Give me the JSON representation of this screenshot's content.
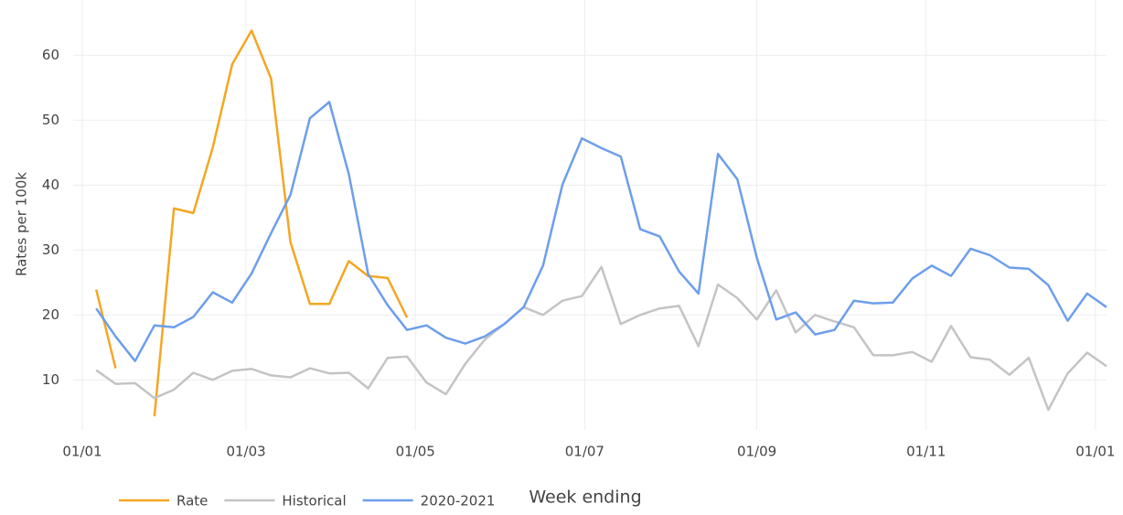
{
  "chart_data": {
    "type": "line",
    "x_label": "Week ending",
    "y_label": "Rates per 100k",
    "x": [
      5,
      12,
      19,
      26,
      33,
      40,
      47,
      54,
      61,
      68,
      75,
      82,
      89,
      96,
      103,
      110,
      117,
      124,
      131,
      138,
      145,
      152,
      159,
      166,
      173,
      180,
      187,
      194,
      201,
      208,
      215,
      222,
      229,
      236,
      243,
      250,
      257,
      264,
      271,
      278,
      285,
      292,
      299,
      306,
      313,
      320,
      327,
      334,
      341,
      348,
      355,
      362,
      369
    ],
    "xlim": [
      0,
      369
    ],
    "xticks": [
      {
        "value": 0,
        "label": "01/01"
      },
      {
        "value": 59,
        "label": "01/03"
      },
      {
        "value": 120,
        "label": "01/05"
      },
      {
        "value": 181,
        "label": "01/07"
      },
      {
        "value": 243,
        "label": "01/09"
      },
      {
        "value": 304,
        "label": "01/11"
      },
      {
        "value": 365,
        "label": "01/01"
      }
    ],
    "ylim": [
      2.3,
      68.5
    ],
    "yticks": [
      10,
      20,
      30,
      40,
      50,
      60
    ],
    "grid": true,
    "legend": "bottom-left",
    "series": [
      {
        "name": "Rate",
        "color": "#f5a623",
        "values": [
          23.9,
          11.8,
          null,
          4.4,
          36.4,
          35.7,
          45.8,
          58.6,
          63.8,
          56.4,
          31.2,
          21.7,
          21.7,
          28.3,
          26.0,
          25.7,
          19.6,
          null,
          null,
          null,
          null,
          null,
          null,
          null,
          null,
          null,
          null,
          null,
          null,
          null,
          null,
          null,
          null,
          null,
          null,
          null,
          null,
          null,
          null,
          null,
          null,
          null,
          null,
          null,
          null,
          null,
          null,
          null,
          null,
          null,
          null,
          null,
          null
        ]
      },
      {
        "name": "Historical",
        "color": "#c4c4c4",
        "values": [
          11.5,
          9.4,
          9.5,
          7.2,
          8.5,
          11.1,
          10.0,
          11.4,
          11.7,
          10.7,
          10.4,
          11.8,
          11.0,
          11.1,
          8.7,
          13.4,
          13.6,
          9.6,
          7.8,
          12.5,
          16.2,
          18.6,
          21.2,
          20.0,
          22.2,
          22.9,
          27.4,
          18.6,
          20.0,
          21.0,
          21.4,
          15.2,
          24.7,
          22.6,
          19.3,
          23.8,
          17.3,
          20.0,
          19.0,
          18.1,
          13.8,
          13.8,
          14.3,
          12.8,
          18.3,
          13.5,
          13.1,
          10.8,
          13.4,
          5.4,
          11.0,
          14.2,
          12.1
        ]
      },
      {
        "name": "2020-2021",
        "color": "#6d9eeb",
        "values": [
          21.0,
          16.7,
          12.9,
          18.4,
          18.1,
          19.7,
          23.5,
          21.9,
          26.4,
          32.6,
          38.5,
          50.3,
          52.8,
          41.7,
          26.3,
          21.5,
          17.7,
          18.4,
          16.5,
          15.6,
          16.7,
          18.6,
          21.2,
          27.6,
          40.1,
          47.2,
          45.7,
          44.4,
          33.2,
          32.1,
          26.7,
          23.3,
          44.8,
          40.9,
          28.8,
          19.3,
          20.4,
          17.0,
          17.7,
          22.2,
          21.8,
          21.9,
          25.6,
          27.6,
          26.0,
          30.2,
          29.2,
          27.3,
          27.1,
          24.6,
          19.1,
          23.3,
          21.2
        ]
      }
    ]
  }
}
